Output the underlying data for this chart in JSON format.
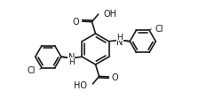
{
  "bg_color": "#ffffff",
  "line_color": "#1a1a1a",
  "line_width": 1.2,
  "font_size": 7.0,
  "fig_width": 2.24,
  "fig_height": 1.13,
  "dpi": 100,
  "xlim": [
    0,
    10
  ],
  "ylim": [
    0,
    5
  ]
}
